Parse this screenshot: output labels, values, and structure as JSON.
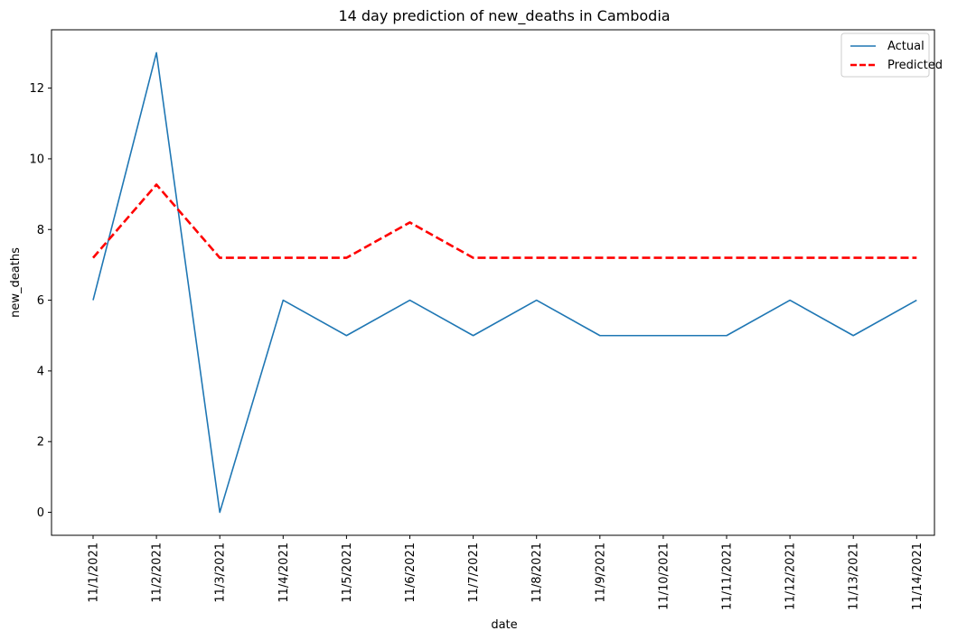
{
  "chart_data": {
    "type": "line",
    "title": "14 day prediction of new_deaths in Cambodia",
    "xlabel": "date",
    "ylabel": "new_deaths",
    "categories": [
      "11/1/2021",
      "11/2/2021",
      "11/3/2021",
      "11/4/2021",
      "11/5/2021",
      "11/6/2021",
      "11/7/2021",
      "11/8/2021",
      "11/9/2021",
      "11/10/2021",
      "11/11/2021",
      "11/12/2021",
      "11/13/2021",
      "11/14/2021"
    ],
    "y_ticks": [
      0,
      2,
      4,
      6,
      8,
      10,
      12
    ],
    "ylim": [
      -0.65,
      13.65
    ],
    "grid": false,
    "legend_position": "top-right",
    "series": [
      {
        "name": "Actual",
        "color": "#1f77b4",
        "style": "solid",
        "values": [
          6,
          13,
          0,
          6,
          5,
          6,
          5,
          6,
          5,
          5,
          5,
          6,
          5,
          6
        ]
      },
      {
        "name": "Predicted",
        "color": "#ff0000",
        "style": "dashed",
        "values": [
          7.2,
          9.27,
          7.2,
          7.2,
          7.2,
          8.2,
          7.2,
          7.2,
          7.2,
          7.2,
          7.2,
          7.2,
          7.2,
          7.2
        ]
      }
    ]
  }
}
